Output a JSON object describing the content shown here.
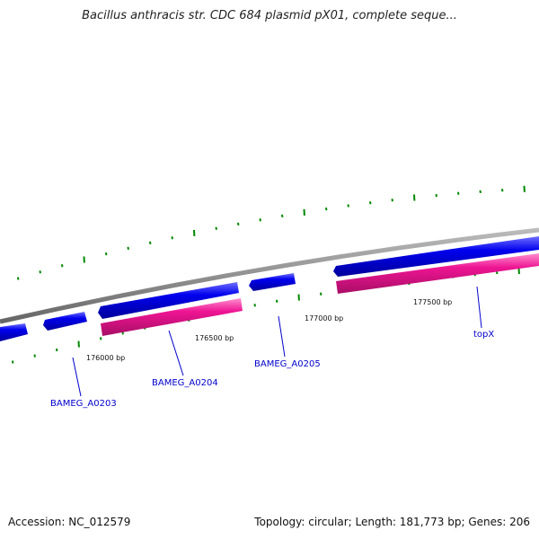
{
  "title": "Bacillus anthracis str. CDC 684 plasmid pX01, complete seque...",
  "footer": {
    "accession": "Accession: NC_012579",
    "summary": "Topology: circular; Length: 181,773 bp; Genes: 206"
  },
  "scale_labels": [
    "176000 bp",
    "176500 bp",
    "177000 bp",
    "177500 bp"
  ],
  "gene_labels": [
    "BAMEG_A0203",
    "BAMEG_A0204",
    "BAMEG_A0205",
    "topX"
  ],
  "colors": {
    "backbone": "#888888",
    "forward_gene": "#0000ee",
    "reverse_gene": "#ee1493",
    "tick": "#008800",
    "label": "#0000cc"
  }
}
